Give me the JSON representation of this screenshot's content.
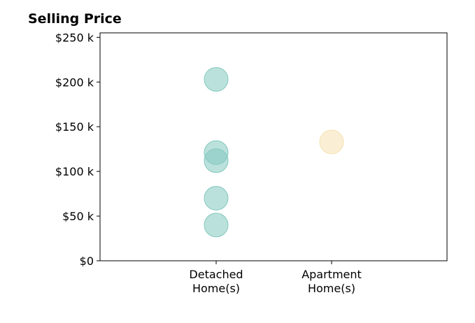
{
  "chart_data": {
    "type": "scatter",
    "title": "Selling Price",
    "xlabel": "",
    "ylabel": "",
    "categories": [
      "Detached\nHome(s)",
      "Apartment\nHome(s)"
    ],
    "ylim": [
      0,
      255000
    ],
    "yticks": [
      {
        "value": 0,
        "label": "$0"
      },
      {
        "value": 50000,
        "label": "$50 k"
      },
      {
        "value": 100000,
        "label": "$100 k"
      },
      {
        "value": 150000,
        "label": "$150 k"
      },
      {
        "value": 200000,
        "label": "$200 k"
      },
      {
        "value": 250000,
        "label": "$250 k"
      }
    ],
    "grid": false,
    "series": [
      {
        "category": "Detached\nHome(s)",
        "color": "#83c9c0",
        "values": [
          203000,
          121000,
          112000,
          70000,
          40000
        ]
      },
      {
        "category": "Apartment\nHome(s)",
        "color": "#f5e2b0",
        "values": [
          133000
        ]
      }
    ]
  }
}
